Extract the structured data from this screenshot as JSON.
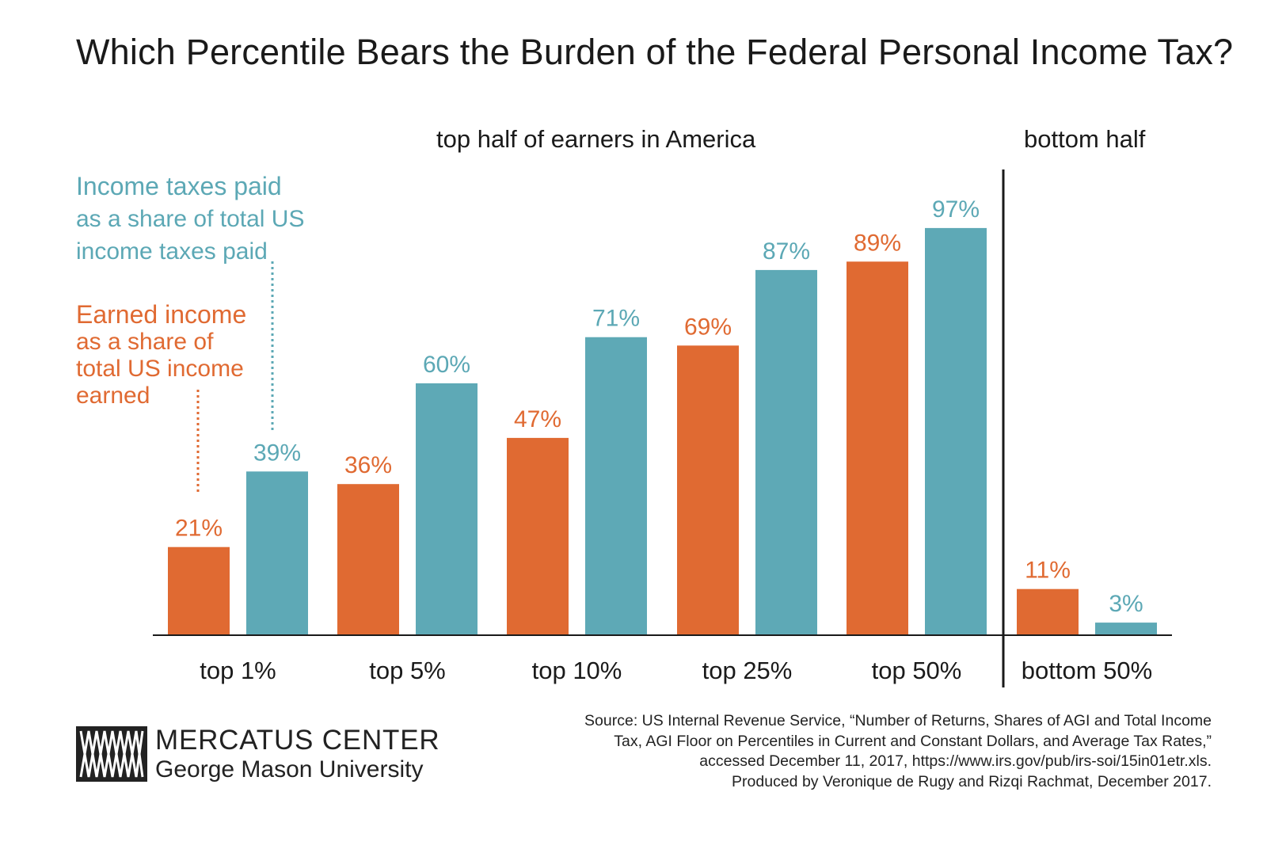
{
  "title": "Which Percentile Bears the Burden of the Federal Personal Income Tax?",
  "group_labels": {
    "top": "top half of earners in America",
    "bottom": "bottom half"
  },
  "legend": {
    "taxes": {
      "lead": "Income taxes paid",
      "line2": "as a share of total US",
      "line3": "income taxes paid"
    },
    "income": {
      "lead": "Earned income",
      "line2": "as a share of",
      "line3": "total US income",
      "line4": "earned"
    }
  },
  "colors": {
    "income": "#e06a32",
    "taxes": "#5ea9b6",
    "axis": "#1a1a1a"
  },
  "chart_data": {
    "type": "bar",
    "categories": [
      "top 1%",
      "top 5%",
      "top 10%",
      "top 25%",
      "top 50%",
      "bottom 50%"
    ],
    "series": [
      {
        "name": "Earned income as a share of total US income earned",
        "values": [
          21,
          36,
          47,
          69,
          89,
          11
        ],
        "labels": [
          "21%",
          "36%",
          "47%",
          "69%",
          "89%",
          "11%"
        ]
      },
      {
        "name": "Income taxes paid as a share of total US income taxes paid",
        "values": [
          39,
          60,
          71,
          87,
          97,
          3
        ],
        "labels": [
          "39%",
          "60%",
          "71%",
          "87%",
          "97%",
          "3%"
        ]
      }
    ],
    "ylim": [
      0,
      100
    ],
    "grid": false,
    "legend": "left"
  },
  "logo": {
    "name": "MERCATUS CENTER",
    "sub": "George Mason University"
  },
  "source": {
    "line1": "Source: US Internal Revenue Service, “Number of Returns, Shares of AGI and Total Income",
    "line2": "Tax, AGI Floor on Percentiles in Current and Constant Dollars, and Average Tax Rates,”",
    "line3": "accessed December 11, 2017, https://www.irs.gov/pub/irs-soi/15in01etr.xls.",
    "line4": "Produced by Veronique de Rugy and Rizqi Rachmat, December 2017."
  }
}
